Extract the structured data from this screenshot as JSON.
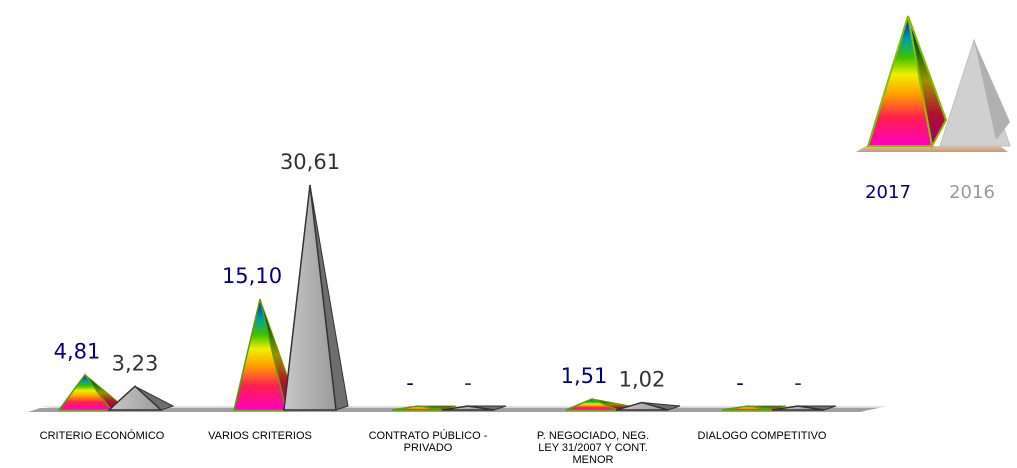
{
  "chart_data": {
    "type": "bar",
    "categories": [
      "CRITERIO ECONÓMICO",
      "VARIOS CRITERIOS",
      "CONTRATO PÚBLICO - PRIVADO",
      "P. NEGOCIADO, NEG. LEY 31/2007 Y CONT. MENOR",
      "DIALOGO COMPETITIVO"
    ],
    "series": [
      {
        "name": "2017",
        "values": [
          4.81,
          15.1,
          0,
          1.51,
          0
        ],
        "labels": [
          "4,81",
          "15,10",
          "-",
          "1,51",
          "-"
        ]
      },
      {
        "name": "2016",
        "values": [
          3.23,
          30.61,
          0,
          1.02,
          0
        ],
        "labels": [
          "3,23",
          "30,61",
          "-",
          "1,02",
          "-"
        ]
      }
    ],
    "ylim": [
      0,
      31
    ],
    "grid": false,
    "legend": "top-right",
    "colors": {
      "2017_label": "#000080",
      "2016_label": "#333333",
      "legend_2016": "#999999",
      "series_2016": "#9e9e9e"
    }
  }
}
